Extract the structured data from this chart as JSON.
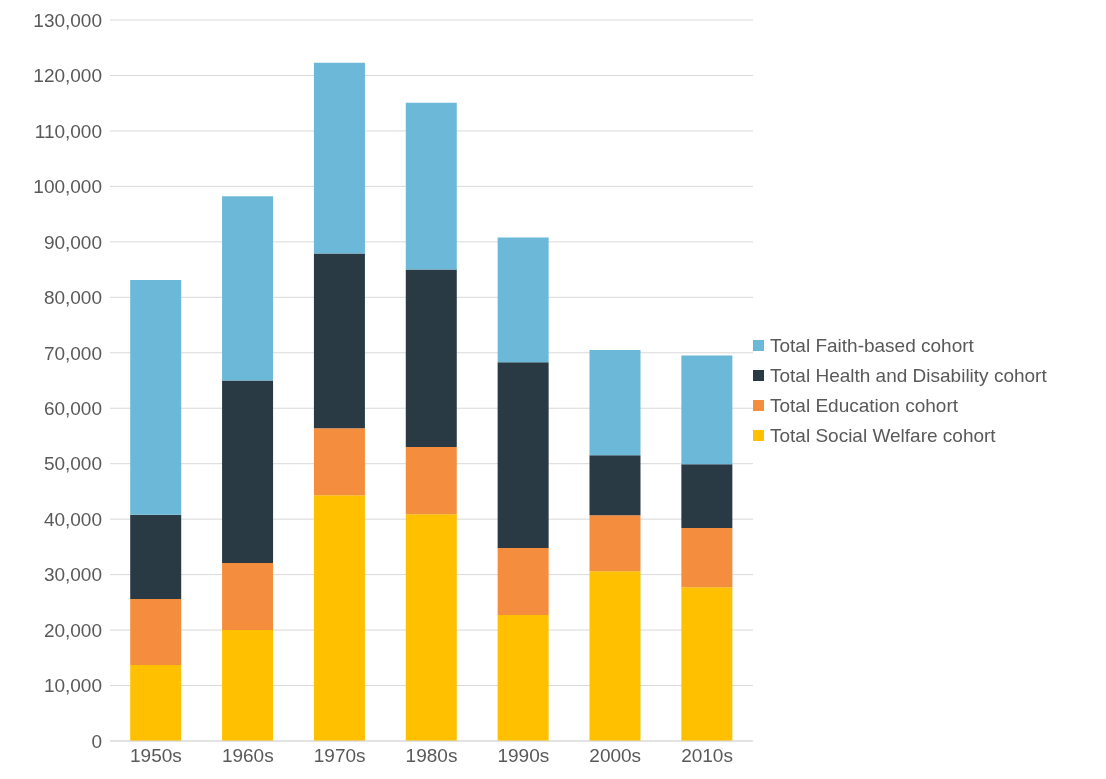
{
  "chart_data": {
    "type": "bar",
    "stacked": true,
    "categories": [
      "1950s",
      "1960s",
      "1970s",
      "1980s",
      "1990s",
      "2000s",
      "2010s"
    ],
    "series": [
      {
        "name": "Total Social Welfare cohort",
        "color": "#ffc000",
        "values": [
          13700,
          20000,
          44300,
          40900,
          22700,
          30600,
          27700
        ]
      },
      {
        "name": "Total Education cohort",
        "color": "#f58d3f",
        "values": [
          11900,
          12100,
          12100,
          12100,
          12100,
          10100,
          10700
        ]
      },
      {
        "name": "Total Health and Disability cohort",
        "color": "#293a44",
        "values": [
          15200,
          32900,
          31500,
          32000,
          33500,
          10800,
          11500
        ]
      },
      {
        "name": "Total Faith-based cohort",
        "color": "#6bb8d8",
        "values": [
          42300,
          33200,
          34400,
          30100,
          22500,
          19000,
          19600
        ]
      }
    ],
    "ylim": [
      0,
      130000
    ],
    "yticks": [
      0,
      {
        "value": 10000,
        "label": "10,000"
      },
      {
        "value": 20000,
        "label": "20,000"
      },
      {
        "value": 30000,
        "label": "30,000"
      },
      {
        "value": 40000,
        "label": "40,000"
      },
      {
        "value": 50000,
        "label": "50,000"
      },
      {
        "value": 60000,
        "label": "60,000"
      },
      {
        "value": 70000,
        "label": "70,000"
      },
      {
        "value": 80000,
        "label": "80,000"
      },
      {
        "value": 90000,
        "label": "90,000"
      },
      {
        "value": 100000,
        "label": "100,000"
      },
      {
        "value": 110000,
        "label": "110,000"
      },
      {
        "value": 120000,
        "label": "120,000"
      },
      {
        "value": 130000,
        "label": "130,000"
      }
    ],
    "grid": "y",
    "legend": "right"
  }
}
